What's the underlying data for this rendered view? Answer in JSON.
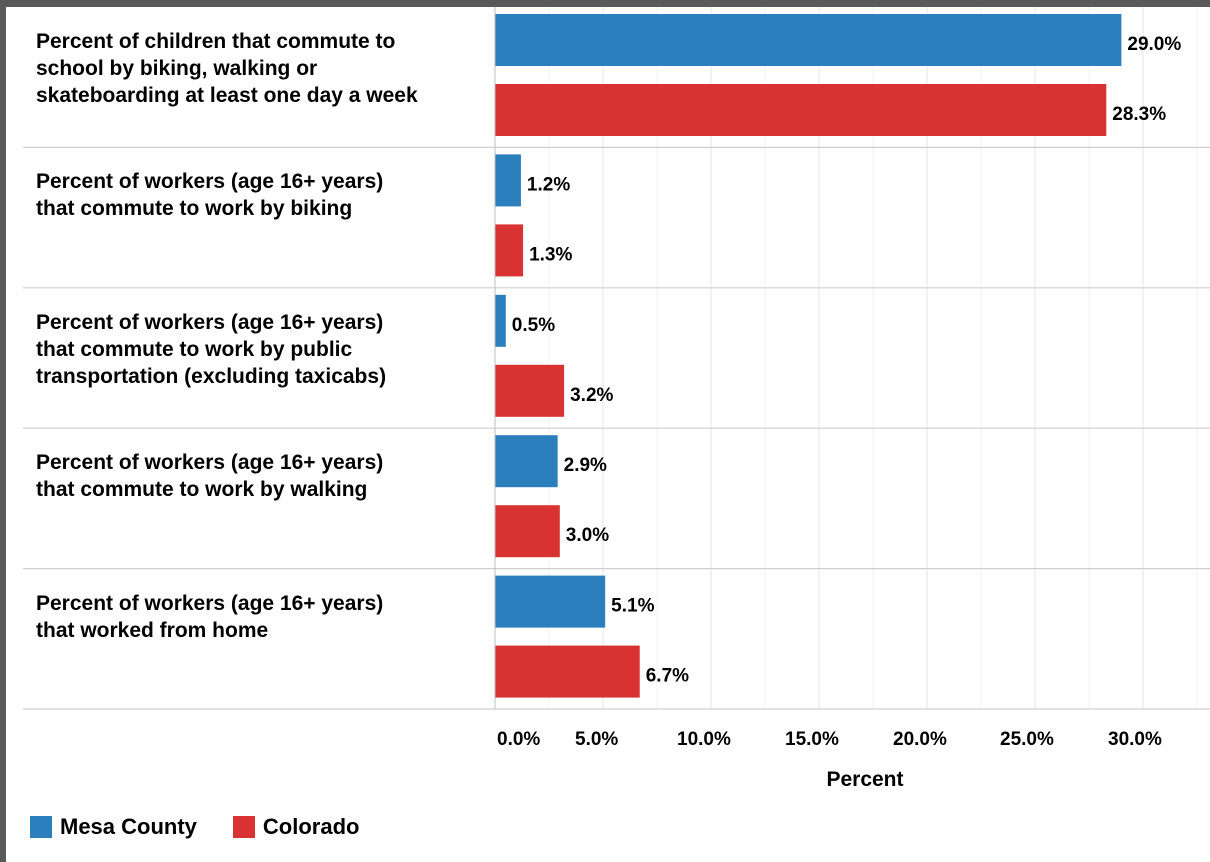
{
  "chart_data": {
    "type": "bar",
    "orientation": "horizontal",
    "categories": [
      "Percent of children that commute to\nschool by biking, walking or\nskateboarding at least one day a week",
      "Percent of workers (age 16+ years)\nthat commute to work by biking",
      "Percent of workers (age 16+ years)\nthat commute to work by public\ntransportation (excluding taxicabs)",
      "Percent of workers (age 16+ years)\nthat commute to work by walking",
      "Percent of workers (age 16+ years)\nthat worked from home"
    ],
    "series": [
      {
        "name": "Mesa County",
        "color": "#2b7fbd",
        "values": [
          29.0,
          1.2,
          0.5,
          2.9,
          5.1
        ],
        "labels": [
          "29.0%",
          "1.2%",
          "0.5%",
          "2.9%",
          "5.1%"
        ]
      },
      {
        "name": "Colorado",
        "color": "#d93232",
        "values": [
          28.3,
          1.3,
          3.2,
          3.0,
          6.7
        ],
        "labels": [
          "28.3%",
          "1.3%",
          "3.2%",
          "3.0%",
          "6.7%"
        ]
      }
    ],
    "xlabel": "Percent",
    "xlim": [
      0,
      32
    ],
    "xticks": [
      0,
      5,
      10,
      15,
      20,
      25,
      30
    ],
    "xtick_labels": [
      "0.0%",
      "5.0%",
      "10.0%",
      "15.0%",
      "20.0%",
      "25.0%",
      "30.0%"
    ],
    "grid": true,
    "legend_position": "bottom-left"
  }
}
